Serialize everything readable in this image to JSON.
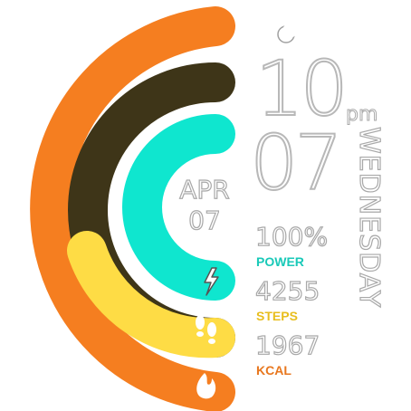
{
  "time": {
    "hour": "10",
    "minute": "07",
    "ampm": "pm",
    "weekday": "WEDNESDAY"
  },
  "date": {
    "month": "APR",
    "day": "07"
  },
  "stats": {
    "power": {
      "value": "100%",
      "label": "POWER",
      "level": 1.0
    },
    "steps": {
      "value": "4255",
      "label": "STEPS"
    },
    "kcal": {
      "value": "1967",
      "label": "KCAL"
    }
  },
  "icons": {
    "status": "moon-icon",
    "power": "lightning-icon",
    "steps": "footprints-icon",
    "kcal": "flame-icon"
  },
  "colors": {
    "outer_ring": "#F57E20",
    "second_ring": "#3E3518",
    "teal_ring": "#0FE6CF",
    "yellow_ring": "#FEDC45",
    "power_label": "#19C9B8",
    "steps_label": "#E8BE1E",
    "kcal_label": "#E8771E"
  }
}
